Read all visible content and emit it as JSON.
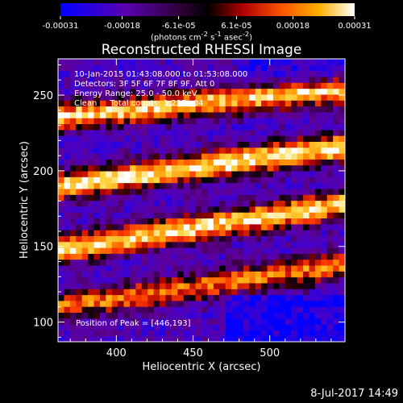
{
  "window": {
    "title": "Reconstructed RHESSI Image",
    "timestamp": "8-Jul-2017 14:49"
  },
  "colorbar": {
    "ticks": [
      "-0.00031",
      "-0.00018",
      "-6.1e-05",
      "6.1e-05",
      "0.00018",
      "0.00031"
    ],
    "tick_values": [
      -0.00031,
      -0.00018,
      -6.1e-05,
      6.1e-05,
      0.00018,
      0.00031
    ],
    "range": [
      -0.00031,
      0.00031
    ],
    "units_text": "(photons cm",
    "units_exp1": "-2",
    "units_mid": " s",
    "units_exp2": "-1",
    "units_end": " asec",
    "units_exp3": "-2",
    "units_close": ")",
    "colors": [
      "#0000ff",
      "#4b00aa",
      "#6a0088",
      "#000000",
      "#a00000",
      "#ff5000",
      "#ffa000",
      "#ffe060",
      "#ffffff"
    ]
  },
  "info": {
    "line1": "10-Jan-2015 01:43:08.000 to 01:53:08.000",
    "line2": "Detectors: 3F 5F 6F 7F 8F 9F, Att 0",
    "line3": "Energy Range: 25.0 - 50.0 keV",
    "line4": "Clean     Total counts: 1.23E+04",
    "peak": "Position of Peak = [446,193]"
  },
  "chart_data": {
    "type": "heatmap",
    "title": "Reconstructed RHESSI Image",
    "xlabel": "Heliocentric X (arcsec)",
    "ylabel": "Heliocentric Y (arcsec)",
    "xlim": [
      362,
      549
    ],
    "ylim": [
      87,
      274
    ],
    "xticks": [
      400,
      450,
      500
    ],
    "yticks": [
      100,
      150,
      200,
      250
    ],
    "grid": false,
    "peak_position": [
      446,
      193
    ],
    "bright_bands": [
      {
        "y_at_x362": 236,
        "y_at_x549": 254,
        "strength": 0.9
      },
      {
        "y_at_x362": 190,
        "y_at_x549": 216,
        "strength": 1.0
      },
      {
        "y_at_x362": 148,
        "y_at_x549": 178,
        "strength": 0.95
      },
      {
        "y_at_x362": 110,
        "y_at_x549": 138,
        "strength": 0.7
      }
    ]
  }
}
